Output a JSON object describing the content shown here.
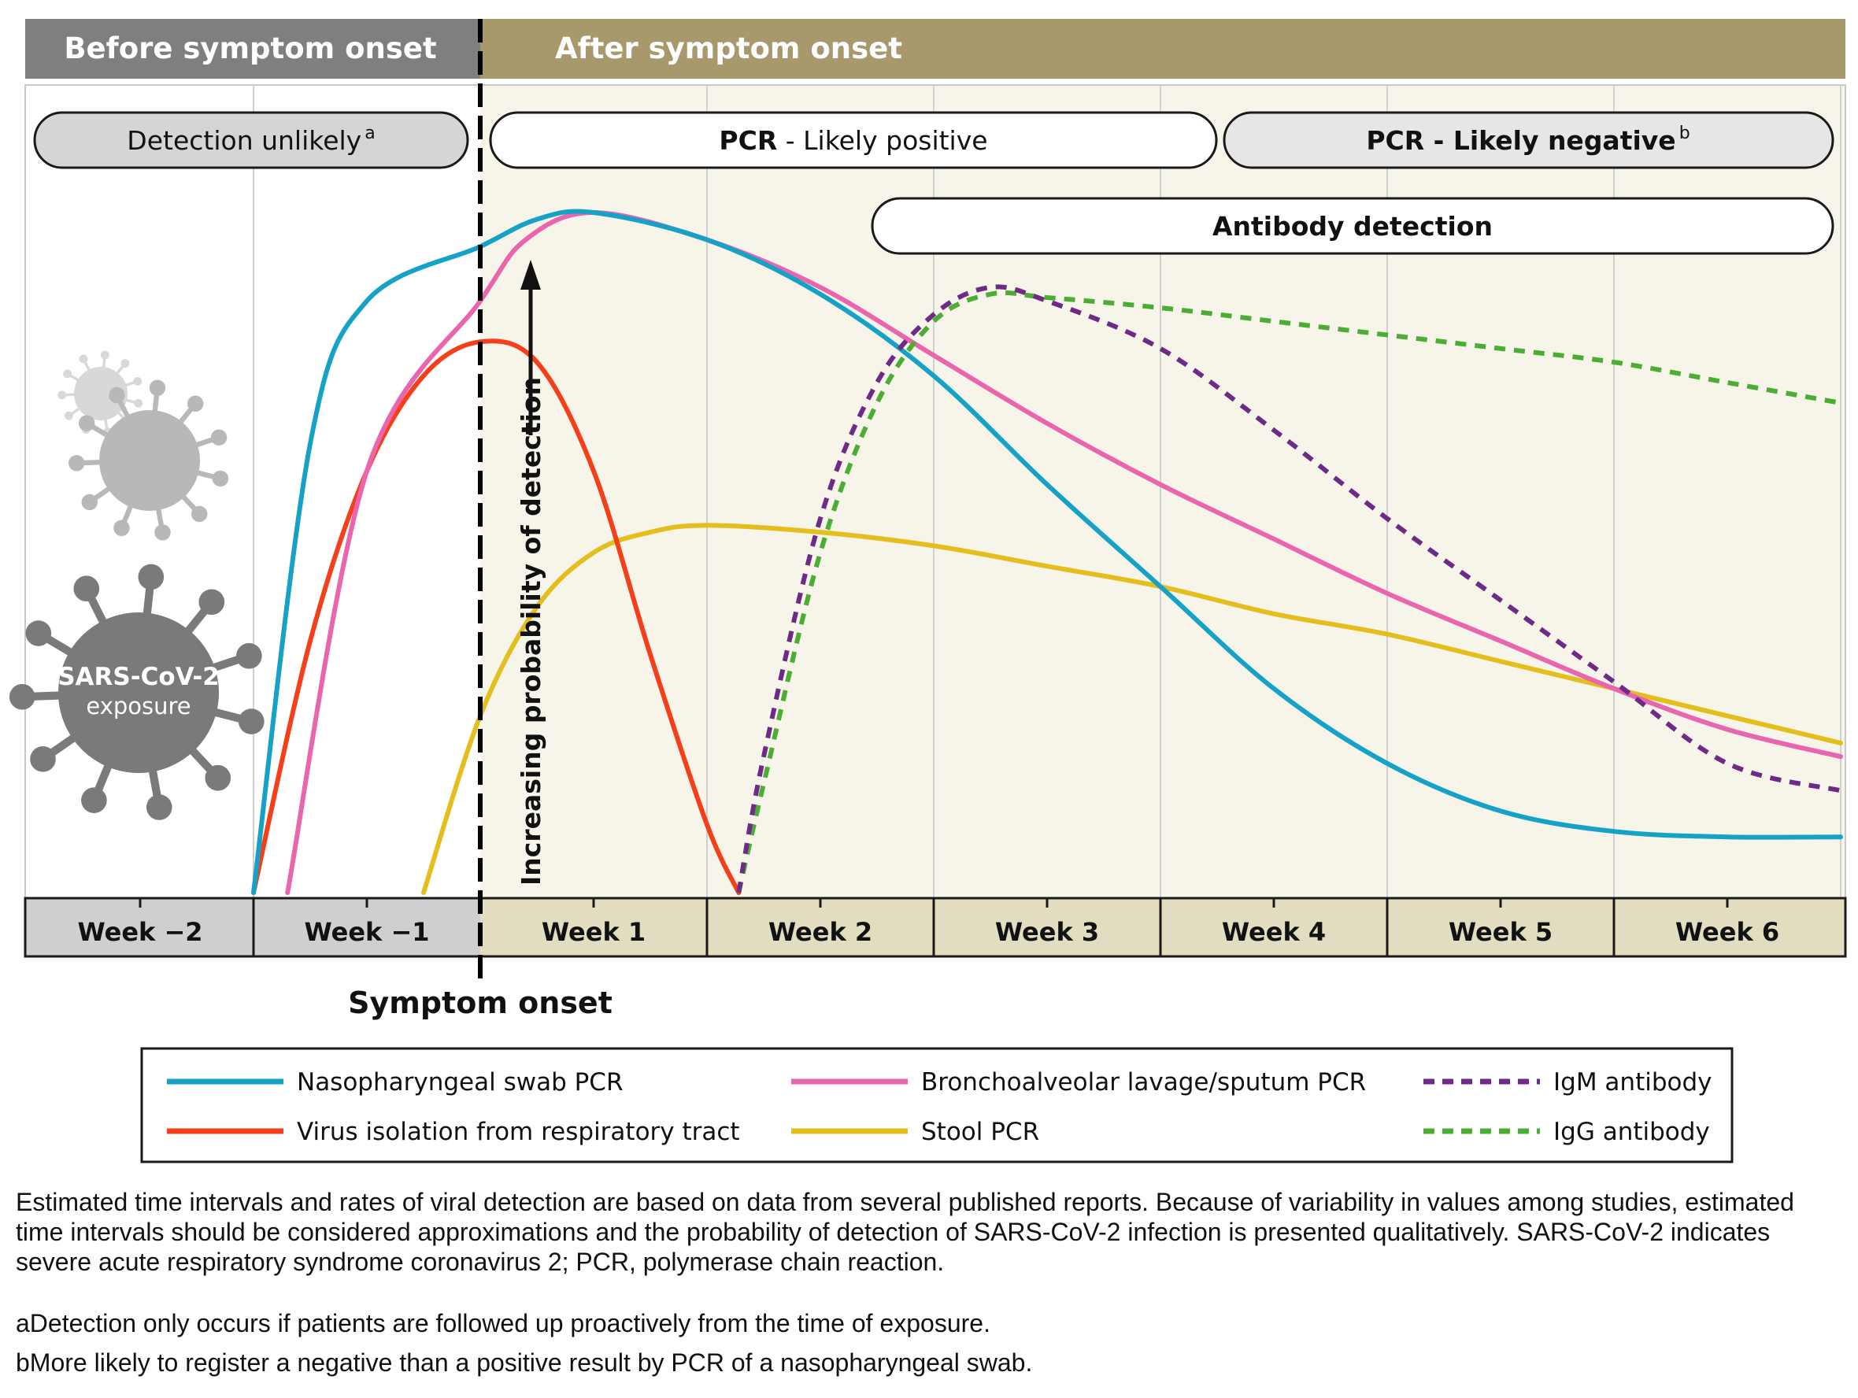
{
  "header": {
    "before_label": "Before symptom onset",
    "after_label": "After symptom onset"
  },
  "bands": {
    "detection_unlikely": "Detection unlikely",
    "detection_unlikely_sup": "a",
    "pcr_positive_bold": "PCR",
    "pcr_positive_rest": " - Likely positive",
    "pcr_negative_bold": "PCR",
    "pcr_negative_rest": " - Likely negative",
    "pcr_negative_sup": "b",
    "antibody": "Antibody detection"
  },
  "virus_label_line1": "SARS-CoV-2",
  "virus_label_line2": "exposure",
  "arrow_label": "Increasing probability of detection",
  "onset_label": "Symptom onset",
  "colors": {
    "header_before": "#7f7f7f",
    "header_after": "#a8996c",
    "plot_after_bg": "#f7f5ea",
    "week_before_bg": "#cfcfcf",
    "week_after_bg": "#e2dcc0",
    "virus_dark": "#7a7a7a",
    "virus_mid": "#b8b8b8",
    "virus_light": "#d8d8d8"
  },
  "chart_data": {
    "type": "line",
    "title": "",
    "xlabel": "",
    "ylabel": "Increasing probability of detection",
    "x_unit": "weeks relative to symptom onset",
    "x_ticks": [
      "Week −2",
      "Week −1",
      "Week 1",
      "Week 2",
      "Week 3",
      "Week 4",
      "Week 5",
      "Week 6"
    ],
    "xlim": [
      -2,
      6
    ],
    "ylim": [
      0,
      1
    ],
    "y_scale": "qualitative",
    "grid": true,
    "symptom_onset_x": 0,
    "legend_placement": "bottom",
    "series": [
      {
        "name": "Nasopharyngeal swab PCR",
        "color": "#16a2c6",
        "dash": "solid",
        "points": [
          [
            -1.0,
            0.0
          ],
          [
            -0.75,
            0.66
          ],
          [
            -0.5,
            0.87
          ],
          [
            0,
            0.95
          ],
          [
            0.25,
            0.99
          ],
          [
            0.5,
            1.0
          ],
          [
            1.0,
            0.96
          ],
          [
            1.5,
            0.88
          ],
          [
            2.0,
            0.76
          ],
          [
            2.5,
            0.6
          ],
          [
            3.0,
            0.45
          ],
          [
            3.5,
            0.3
          ],
          [
            4.0,
            0.19
          ],
          [
            4.5,
            0.12
          ],
          [
            5.0,
            0.09
          ],
          [
            5.5,
            0.082
          ],
          [
            6.0,
            0.082
          ]
        ]
      },
      {
        "name": "Bronchoalveolar lavage/sputum PCR",
        "color": "#e966ae",
        "dash": "solid",
        "points": [
          [
            -0.85,
            0.0
          ],
          [
            -0.5,
            0.62
          ],
          [
            0,
            0.87
          ],
          [
            0.2,
            0.96
          ],
          [
            0.5,
            1.0
          ],
          [
            1.0,
            0.96
          ],
          [
            1.5,
            0.89
          ],
          [
            2.0,
            0.79
          ],
          [
            2.5,
            0.69
          ],
          [
            3.0,
            0.6
          ],
          [
            3.5,
            0.52
          ],
          [
            4.0,
            0.44
          ],
          [
            4.5,
            0.37
          ],
          [
            5.0,
            0.3
          ],
          [
            5.5,
            0.24
          ],
          [
            6.0,
            0.2
          ]
        ]
      },
      {
        "name": "Virus isolation from respiratory tract",
        "color": "#f43f1a",
        "dash": "solid",
        "points": [
          [
            -1.0,
            0.0
          ],
          [
            -0.75,
            0.37
          ],
          [
            -0.5,
            0.62
          ],
          [
            -0.25,
            0.76
          ],
          [
            0,
            0.81
          ],
          [
            0.25,
            0.78
          ],
          [
            0.5,
            0.62
          ],
          [
            0.75,
            0.35
          ],
          [
            1.0,
            0.1
          ],
          [
            1.14,
            0.0
          ]
        ]
      },
      {
        "name": "Stool PCR",
        "color": "#e3be1d",
        "dash": "solid",
        "points": [
          [
            -0.25,
            0.0
          ],
          [
            0,
            0.26
          ],
          [
            0.25,
            0.42
          ],
          [
            0.5,
            0.5
          ],
          [
            0.75,
            0.53
          ],
          [
            1.0,
            0.54
          ],
          [
            1.5,
            0.53
          ],
          [
            2.0,
            0.51
          ],
          [
            2.5,
            0.48
          ],
          [
            3.0,
            0.45
          ],
          [
            3.5,
            0.41
          ],
          [
            4.0,
            0.38
          ],
          [
            4.5,
            0.34
          ],
          [
            5.0,
            0.3
          ],
          [
            5.5,
            0.26
          ],
          [
            6.0,
            0.22
          ]
        ]
      },
      {
        "name": "IgM antibody",
        "color": "#6d2b87",
        "dash": "dashed",
        "points": [
          [
            1.14,
            0.0
          ],
          [
            1.25,
            0.2
          ],
          [
            1.5,
            0.55
          ],
          [
            1.75,
            0.75
          ],
          [
            2.0,
            0.85
          ],
          [
            2.25,
            0.89
          ],
          [
            2.5,
            0.87
          ],
          [
            3.0,
            0.8
          ],
          [
            3.5,
            0.68
          ],
          [
            4.0,
            0.55
          ],
          [
            4.5,
            0.43
          ],
          [
            5.0,
            0.31
          ],
          [
            5.5,
            0.19
          ],
          [
            6.0,
            0.15
          ]
        ]
      },
      {
        "name": "IgG antibody",
        "color": "#4bad34",
        "dash": "dashed",
        "points": [
          [
            1.14,
            0.0
          ],
          [
            1.25,
            0.16
          ],
          [
            1.5,
            0.5
          ],
          [
            1.75,
            0.72
          ],
          [
            2.0,
            0.84
          ],
          [
            2.25,
            0.88
          ],
          [
            2.5,
            0.875
          ],
          [
            3.0,
            0.86
          ],
          [
            3.5,
            0.84
          ],
          [
            4.0,
            0.82
          ],
          [
            4.5,
            0.8
          ],
          [
            5.0,
            0.78
          ],
          [
            5.5,
            0.75
          ],
          [
            6.0,
            0.72
          ]
        ]
      }
    ],
    "legend": [
      {
        "label": "Nasopharyngeal swab PCR",
        "color": "#16a2c6",
        "dash": "solid"
      },
      {
        "label": "Bronchoalveolar lavage/sputum PCR",
        "color": "#e966ae",
        "dash": "solid"
      },
      {
        "label": "IgM antibody",
        "color": "#6d2b87",
        "dash": "dashed"
      },
      {
        "label": "Virus isolation from respiratory tract",
        "color": "#f43f1a",
        "dash": "solid"
      },
      {
        "label": "Stool PCR",
        "color": "#e3be1d",
        "dash": "solid"
      },
      {
        "label": "IgG antibody",
        "color": "#4bad34",
        "dash": "dashed"
      }
    ]
  },
  "notes": {
    "paragraph": "Estimated time intervals and rates of viral detection are based on data from several published reports. Because of variability in values among studies, estimated time intervals should be considered approximations and the probability of detection of SARS-CoV-2 infection is presented qualitatively. SARS-CoV-2 indicates severe acute respiratory syndrome coronavirus 2; PCR, polymerase chain reaction.",
    "footnote_a": "aDetection only occurs if patients are followed up proactively from the time of exposure.",
    "footnote_b": "bMore likely to register a negative than a positive result by PCR of a nasopharyngeal swab."
  }
}
